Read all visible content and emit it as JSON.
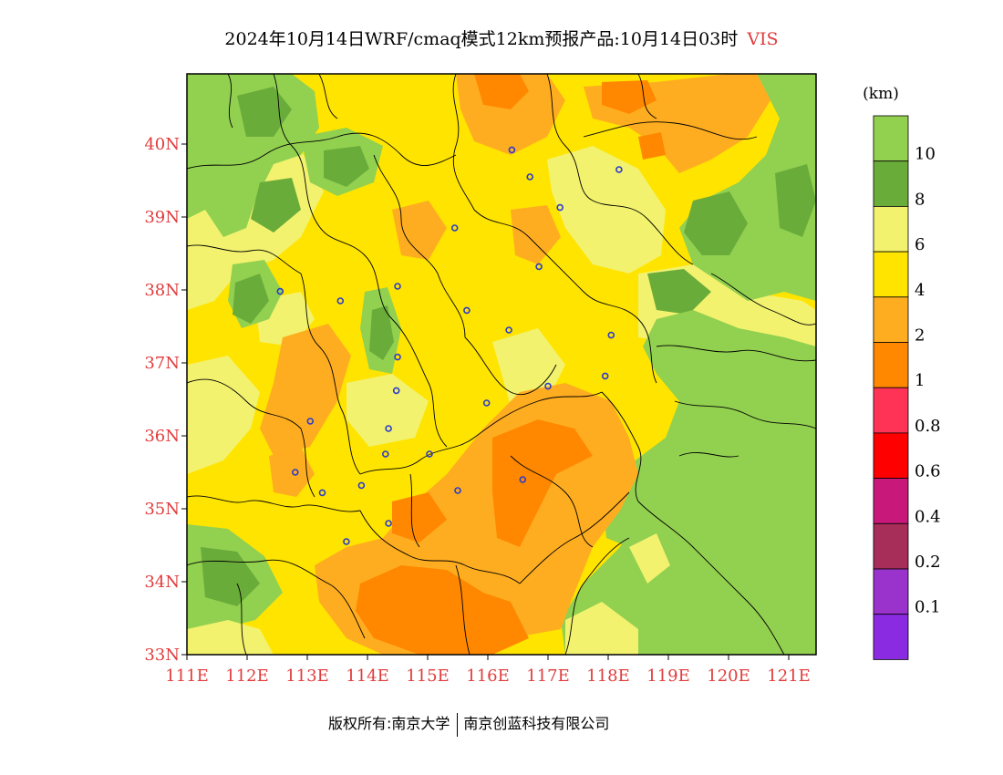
{
  "title": {
    "text": "2024年10月14日WRF/cmaq模式12km预报产品:10月14日03时",
    "variable": "VIS"
  },
  "map": {
    "lon_ticks": [
      "111E",
      "112E",
      "113E",
      "114E",
      "115E",
      "116E",
      "117E",
      "118E",
      "119E",
      "120E",
      "121E"
    ],
    "lat_ticks": [
      "33N",
      "34N",
      "35N",
      "36N",
      "37N",
      "38N",
      "39N",
      "40N"
    ],
    "label_color": "#e03c3c"
  },
  "legend": {
    "unit": "(km)",
    "labels": [
      "10",
      "8",
      "6",
      "4",
      "2",
      "1",
      "0.8",
      "0.6",
      "0.4",
      "0.2",
      "0.1"
    ],
    "colors": [
      "#92d050",
      "#6aac3a",
      "#f2f26e",
      "#ffe400",
      "#ffad20",
      "#ff8800",
      "#ff3355",
      "#ff0000",
      "#c8187a",
      "#a82e5a",
      "#9933cc",
      "#8a2be2"
    ]
  },
  "stations": [
    [
      112.55,
      37.98
    ],
    [
      113.55,
      37.85
    ],
    [
      114.5,
      38.05
    ],
    [
      115.45,
      38.85
    ],
    [
      116.4,
      39.92
    ],
    [
      116.7,
      39.55
    ],
    [
      117.2,
      39.13
    ],
    [
      118.18,
      39.65
    ],
    [
      116.85,
      38.32
    ],
    [
      115.65,
      37.72
    ],
    [
      116.35,
      37.45
    ],
    [
      114.5,
      37.08
    ],
    [
      114.48,
      36.62
    ],
    [
      114.35,
      36.1
    ],
    [
      114.3,
      35.75
    ],
    [
      113.9,
      35.32
    ],
    [
      113.25,
      35.22
    ],
    [
      112.8,
      35.5
    ],
    [
      113.05,
      36.2
    ],
    [
      114.35,
      34.8
    ],
    [
      113.65,
      34.55
    ],
    [
      115.03,
      35.75
    ],
    [
      115.5,
      35.25
    ],
    [
      115.98,
      36.45
    ],
    [
      116.58,
      35.4
    ],
    [
      117.0,
      36.68
    ],
    [
      117.95,
      36.82
    ],
    [
      118.05,
      37.38
    ]
  ],
  "footer": {
    "copyright": "版权所有:南京大学",
    "company": "南京创蓝科技有限公司"
  }
}
